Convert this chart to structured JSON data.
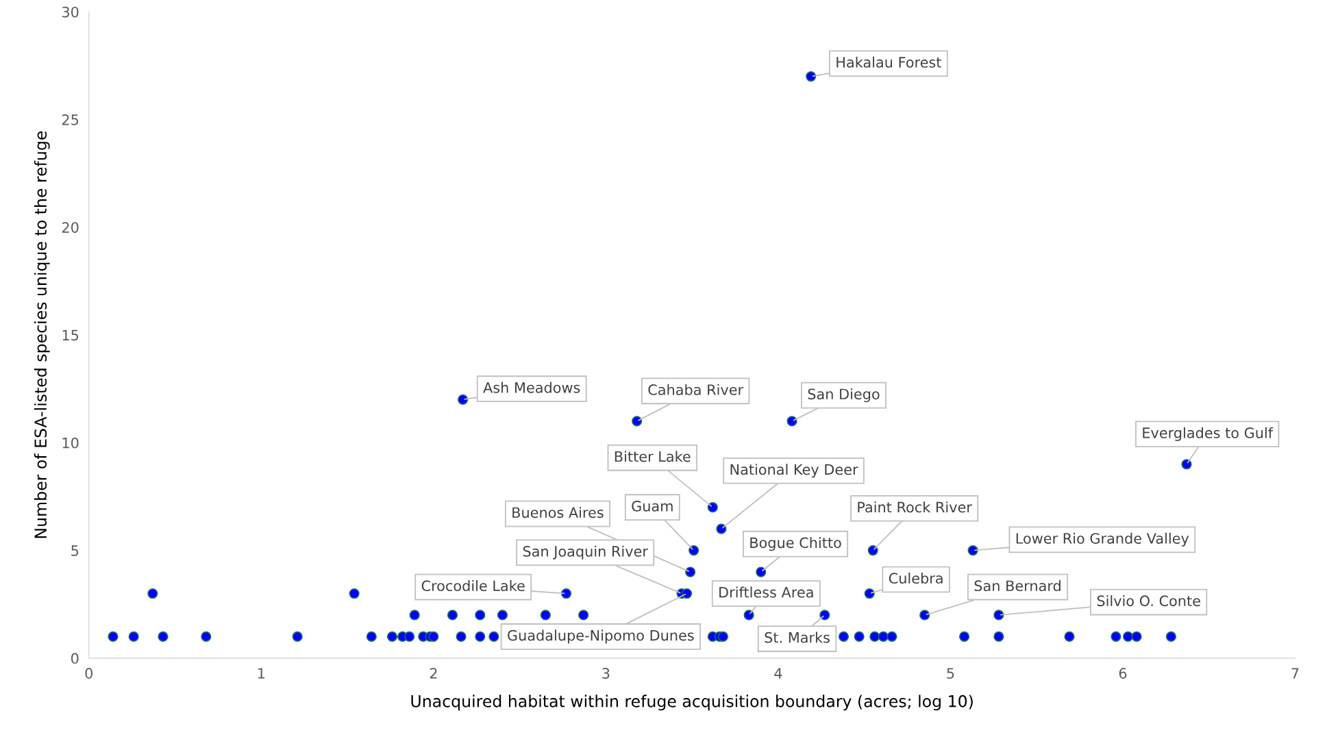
{
  "chart_data": {
    "type": "scatter",
    "xlabel": "Unacquired habitat within refuge acquisition boundary (acres; log 10)",
    "ylabel": "Number of ESA-listed species unique to the refuge",
    "x": [
      0.14,
      0.26,
      0.43,
      0.68,
      1.21,
      1.64,
      1.76,
      1.82,
      1.86,
      1.94,
      1.98,
      2.0,
      2.16,
      2.27,
      2.35,
      3.62,
      3.66,
      3.68,
      4.38,
      4.47,
      4.56,
      4.61,
      4.66,
      5.08,
      5.28,
      5.69,
      5.96,
      6.03,
      6.08,
      6.28,
      1.89,
      2.11,
      2.27,
      2.4,
      2.65,
      2.87,
      3.83,
      4.27,
      4.85,
      5.28,
      0.37,
      1.54,
      2.77,
      3.44,
      3.47,
      4.53,
      3.49,
      3.9,
      3.51,
      4.55,
      5.13,
      3.67,
      3.62,
      6.37,
      3.18,
      4.08,
      2.17,
      4.19
    ],
    "values": [
      1,
      1,
      1,
      1,
      1,
      1,
      1,
      1,
      1,
      1,
      1,
      1,
      1,
      1,
      1,
      1,
      1,
      1,
      1,
      1,
      1,
      1,
      1,
      1,
      1,
      1,
      1,
      1,
      1,
      1,
      2,
      2,
      2,
      2,
      2,
      2,
      2,
      2,
      2,
      2,
      3,
      3,
      3,
      3,
      3,
      3,
      4,
      4,
      5,
      5,
      5,
      6,
      7,
      9,
      11,
      11,
      12,
      27
    ],
    "color": "#0000ff",
    "marker": "circle",
    "grid": false,
    "legend": false,
    "xlim": [
      0,
      7
    ],
    "xticks": [
      0,
      1,
      2,
      3,
      4,
      5,
      6,
      7
    ],
    "ylim": [
      0,
      30
    ],
    "yticks": [
      0,
      5,
      10,
      15,
      20,
      25,
      30
    ],
    "annotations": [
      {
        "text": "Hakalau Forest",
        "x": 4.19,
        "y": 27
      },
      {
        "text": "Ash Meadows",
        "x": 2.17,
        "y": 12
      },
      {
        "text": "Cahaba River",
        "x": 3.18,
        "y": 11
      },
      {
        "text": "San Diego",
        "x": 4.08,
        "y": 11
      },
      {
        "text": "Everglades to Gulf",
        "x": 6.37,
        "y": 9
      },
      {
        "text": "Bitter Lake",
        "x": 3.62,
        "y": 7
      },
      {
        "text": "National Key Deer",
        "x": 3.67,
        "y": 6
      },
      {
        "text": "Buenos Aires",
        "x": 3.49,
        "y": 4
      },
      {
        "text": "Guam",
        "x": 3.51,
        "y": 5
      },
      {
        "text": "Paint Rock River",
        "x": 4.55,
        "y": 5
      },
      {
        "text": "Lower Rio Grande Valley",
        "x": 5.13,
        "y": 5
      },
      {
        "text": "Bogue Chitto",
        "x": 3.9,
        "y": 4
      },
      {
        "text": "San Joaquin River",
        "x": 3.44,
        "y": 3
      },
      {
        "text": "Crocodile Lake",
        "x": 2.77,
        "y": 3
      },
      {
        "text": "Culebra",
        "x": 4.53,
        "y": 3
      },
      {
        "text": "Driftless Area",
        "x": 3.83,
        "y": 2
      },
      {
        "text": "San Bernard",
        "x": 4.85,
        "y": 2
      },
      {
        "text": "Silvio O. Conte",
        "x": 5.28,
        "y": 2
      },
      {
        "text": "Guadalupe-Nipomo Dunes",
        "x": 3.47,
        "y": 3
      },
      {
        "text": "St. Marks",
        "x": 4.27,
        "y": 2
      }
    ]
  }
}
